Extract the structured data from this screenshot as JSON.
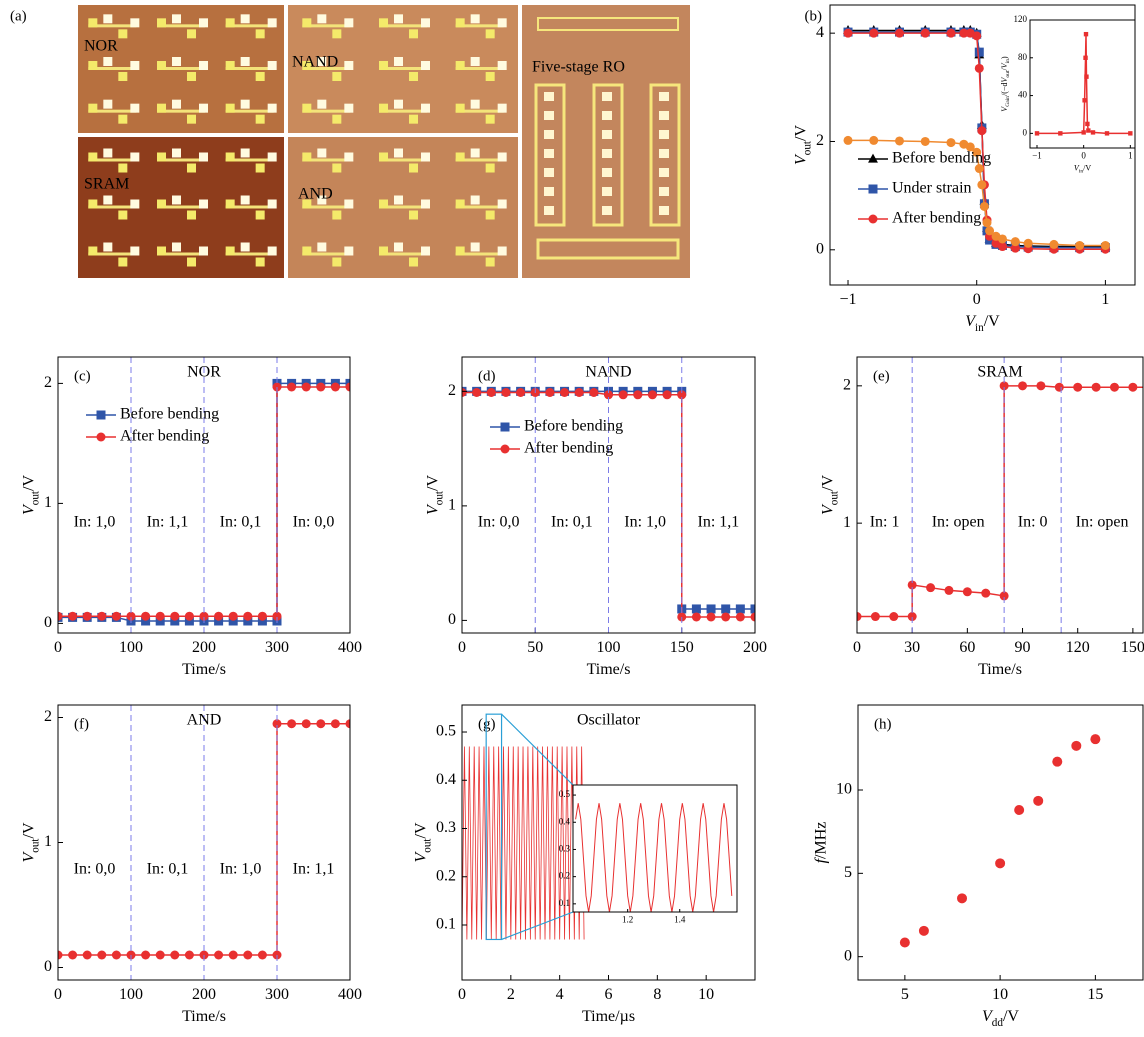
{
  "photo": {
    "label": "(a)",
    "regions": [
      "NOR",
      "NAND",
      "Five-stage RO",
      "SRAM",
      "AND"
    ]
  },
  "chart_data": [
    {
      "type": "line",
      "label": "(b)",
      "xlabel": [
        {
          "t": "V",
          "style": "italic"
        },
        {
          "t": "in",
          "style": "sub"
        },
        {
          "t": "/V"
        }
      ],
      "ylabel": [
        {
          "t": "V",
          "style": "italic"
        },
        {
          "t": "out",
          "style": "sub"
        },
        {
          "t": "/V"
        }
      ],
      "x": [
        -1,
        -0.8,
        -0.6,
        -0.4,
        -0.2,
        -0.1,
        -0.05,
        0,
        0.02,
        0.04,
        0.06,
        0.08,
        0.1,
        0.15,
        0.2,
        0.3,
        0.4,
        0.6,
        0.8,
        1
      ],
      "series": [
        {
          "name": "Before bending",
          "color": "#000000",
          "marker": "triangle",
          "values": [
            4.05,
            4.05,
            4.05,
            4.05,
            4.05,
            4.05,
            4.05,
            4.0,
            3.6,
            2.3,
            0.9,
            0.4,
            0.2,
            0.12,
            0.1,
            0.08,
            0.07,
            0.06,
            0.06,
            0.06
          ]
        },
        {
          "name": "Under strain",
          "color": "#2f55a8",
          "marker": "square",
          "values": [
            4.02,
            4.02,
            4.02,
            4.02,
            4.02,
            4.02,
            4.02,
            3.98,
            3.65,
            2.25,
            0.85,
            0.35,
            0.18,
            0.1,
            0.08,
            0.06,
            0.05,
            0.04,
            0.04,
            0.04
          ]
        },
        {
          "name": "After bending",
          "color": "#e83030",
          "marker": "circle",
          "values": [
            4.0,
            4.0,
            4.0,
            4.0,
            4.0,
            4.0,
            4.0,
            3.95,
            3.35,
            2.2,
            1.2,
            0.55,
            0.25,
            0.12,
            0.06,
            0.03,
            0.02,
            0.01,
            0.01,
            0.01
          ]
        },
        {
          "color": "#f08a30",
          "marker": "circle",
          "values": [
            2.02,
            2.02,
            2.01,
            2.0,
            1.98,
            1.95,
            1.9,
            1.8,
            1.5,
            1.2,
            0.8,
            0.5,
            0.35,
            0.25,
            0.2,
            0.15,
            0.12,
            0.1,
            0.08,
            0.08
          ]
        }
      ],
      "xlim": [
        -1.14,
        1.23
      ],
      "xticks": [
        {
          "value": -1,
          "label": "−1"
        },
        0,
        1
      ],
      "ylim": [
        -0.65,
        4.52
      ],
      "yticks": [
        0,
        2,
        4
      ],
      "legend": "center left",
      "inset": {
        "type": "line",
        "xlabel": [
          {
            "t": "V",
            "style": "italic"
          },
          {
            "t": "in",
            "style": "sub"
          },
          {
            "t": "/V"
          }
        ],
        "ylabel": [
          {
            "t": "V",
            "style": "italic"
          },
          {
            "t": "Gain",
            "style": "sub"
          },
          {
            "t": "/(−d"
          },
          {
            "t": "V",
            "style": "italic"
          },
          {
            "t": "out",
            "style": "sub"
          },
          {
            "t": "/"
          },
          {
            "t": "V",
            "style": "italic"
          },
          {
            "t": "in",
            "style": "sub"
          },
          {
            "t": ")"
          }
        ],
        "x": [
          -1,
          -0.5,
          0,
          0.02,
          0.04,
          0.05,
          0.06,
          0.08,
          0.1,
          0.2,
          0.5,
          1
        ],
        "series": [
          {
            "color": "#e83030",
            "marker": "square",
            "values": [
              0,
              0,
              1,
              35,
              80,
              105,
              60,
              10,
              3,
              1,
              0,
              0
            ]
          }
        ],
        "xlim": [
          -1.15,
          1.1
        ],
        "xticks": [
          {
            "value": -1,
            "label": "−1"
          },
          0,
          1
        ],
        "ylim": [
          -15.5,
          120
        ],
        "yticks": [
          0,
          40,
          80,
          120
        ]
      }
    },
    {
      "type": "line",
      "label": "(c)",
      "title": "NOR",
      "xlabel": [
        {
          "t": "Time/s"
        }
      ],
      "ylabel": [
        {
          "t": "V",
          "style": "italic"
        },
        {
          "t": "out",
          "style": "sub"
        },
        {
          "t": "/V"
        }
      ],
      "x": [
        0,
        20,
        40,
        60,
        80,
        100,
        120,
        140,
        160,
        180,
        200,
        220,
        240,
        260,
        280,
        300,
        300,
        320,
        340,
        360,
        380,
        400
      ],
      "series": [
        {
          "name": "Before bending",
          "color": "#2f55a8",
          "marker": "square",
          "values": [
            0.05,
            0.05,
            0.05,
            0.05,
            0.05,
            0.02,
            0.02,
            0.02,
            0.02,
            0.02,
            0.02,
            0.02,
            0.02,
            0.02,
            0.02,
            0.02,
            2.0,
            2.0,
            2.0,
            2.0,
            2.0,
            2.0
          ]
        },
        {
          "name": "After bending",
          "color": "#e83030",
          "marker": "circle",
          "values": [
            0.06,
            0.06,
            0.06,
            0.06,
            0.06,
            0.06,
            0.06,
            0.06,
            0.06,
            0.06,
            0.06,
            0.06,
            0.06,
            0.06,
            0.06,
            0.06,
            1.97,
            1.97,
            1.97,
            1.97,
            1.97,
            1.97
          ]
        }
      ],
      "vlines": [
        100,
        200,
        300
      ],
      "vline_color": "#7b7be8",
      "annotations": [
        "In: 1,0",
        "In: 1,1",
        "In: 0,1",
        "In: 0,0"
      ],
      "xlim": [
        0,
        400
      ],
      "xticks": [
        0,
        100,
        200,
        300,
        400
      ],
      "ylim": [
        -0.08,
        2.22
      ],
      "yticks": [
        0,
        1,
        2
      ],
      "legend": "upper left"
    },
    {
      "type": "line",
      "label": "(d)",
      "title": "NAND",
      "xlabel": [
        {
          "t": "Time/s"
        }
      ],
      "ylabel": [
        {
          "t": "V",
          "style": "italic"
        },
        {
          "t": "out",
          "style": "sub"
        },
        {
          "t": "/V"
        }
      ],
      "x": [
        0,
        10,
        20,
        30,
        40,
        50,
        60,
        70,
        80,
        90,
        100,
        110,
        120,
        130,
        140,
        150,
        150,
        160,
        170,
        180,
        190,
        200
      ],
      "series": [
        {
          "name": "Before bending",
          "color": "#2f55a8",
          "marker": "square",
          "values": [
            2.0,
            2.0,
            2.0,
            2.0,
            2.0,
            2.0,
            2.0,
            2.0,
            2.0,
            2.0,
            2.0,
            2.0,
            2.0,
            2.0,
            2.0,
            2.0,
            0.1,
            0.1,
            0.1,
            0.1,
            0.1,
            0.1
          ]
        },
        {
          "name": "After bending",
          "color": "#e83030",
          "marker": "circle",
          "values": [
            1.99,
            1.99,
            1.99,
            1.99,
            1.99,
            1.99,
            1.99,
            1.99,
            1.99,
            1.99,
            1.97,
            1.97,
            1.97,
            1.97,
            1.97,
            1.97,
            0.03,
            0.03,
            0.03,
            0.03,
            0.03,
            0.03
          ]
        }
      ],
      "vlines": [
        50,
        100,
        150
      ],
      "vline_color": "#7b7be8",
      "annotations": [
        "In: 0,0",
        "In: 0,1",
        "In: 1,0",
        "In: 1,1"
      ],
      "xlim": [
        0,
        200
      ],
      "xticks": [
        0,
        50,
        100,
        150,
        200
      ],
      "ylim": [
        -0.11,
        2.3
      ],
      "yticks": [
        0,
        1,
        2
      ],
      "legend": "upper left"
    },
    {
      "type": "line",
      "label": "(e)",
      "title": "SRAM",
      "xlabel": [
        {
          "t": "Time/s"
        }
      ],
      "ylabel": [
        {
          "t": "V",
          "style": "italic"
        },
        {
          "t": "out",
          "style": "sub"
        },
        {
          "t": "/V"
        }
      ],
      "x": [
        0,
        10,
        20,
        30,
        30,
        40,
        50,
        60,
        70,
        80,
        80,
        90,
        100,
        110,
        120,
        130,
        140,
        150,
        160
      ],
      "series": [
        {
          "color": "#e83030",
          "marker": "circle",
          "values": [
            0.32,
            0.32,
            0.32,
            0.32,
            0.55,
            0.53,
            0.51,
            0.5,
            0.49,
            0.47,
            2.0,
            2.0,
            2.0,
            1.99,
            1.99,
            1.99,
            1.99,
            1.99,
            1.99
          ]
        }
      ],
      "vlines": [
        30,
        80,
        111
      ],
      "vline_color": "#7b7be8",
      "annotations": [
        "In: 1",
        "In: open",
        "In: 0",
        "In: open"
      ],
      "xlim": [
        0,
        155.5
      ],
      "xticks": [
        0,
        30,
        60,
        90,
        120,
        150
      ],
      "ylim": [
        0.2,
        2.21
      ],
      "yticks": [
        1,
        2
      ]
    },
    {
      "type": "line",
      "label": "(f)",
      "title": "AND",
      "xlabel": [
        {
          "t": "Time/s"
        }
      ],
      "ylabel": [
        {
          "t": "V",
          "style": "italic"
        },
        {
          "t": "out",
          "style": "sub"
        },
        {
          "t": "/V"
        }
      ],
      "x": [
        0,
        20,
        40,
        60,
        80,
        100,
        120,
        140,
        160,
        180,
        200,
        220,
        240,
        260,
        280,
        300,
        300,
        320,
        340,
        360,
        380,
        400
      ],
      "series": [
        {
          "color": "#e83030",
          "marker": "circle",
          "values": [
            0.1,
            0.1,
            0.1,
            0.1,
            0.1,
            0.1,
            0.1,
            0.1,
            0.1,
            0.1,
            0.1,
            0.1,
            0.1,
            0.1,
            0.1,
            0.1,
            1.95,
            1.95,
            1.95,
            1.95,
            1.95,
            1.95
          ]
        }
      ],
      "vlines": [
        100,
        200,
        300
      ],
      "vline_color": "#7b7be8",
      "annotations": [
        "In: 0,0",
        "In: 0,1",
        "In: 1,0",
        "In: 1,1"
      ],
      "xlim": [
        0,
        400
      ],
      "xticks": [
        0,
        100,
        200,
        300,
        400
      ],
      "ylim": [
        -0.1,
        2.1
      ],
      "yticks": [
        0,
        1,
        2
      ]
    },
    {
      "type": "line",
      "label": "(g)",
      "title": "Oscillator",
      "xlabel": [
        {
          "t": "Time/µs"
        }
      ],
      "ylabel": [
        {
          "t": "V",
          "style": "italic"
        },
        {
          "t": "out",
          "style": "sub"
        },
        {
          "t": "/V"
        }
      ],
      "x": [
        0,
        0.1,
        0.2,
        0.3,
        0.4,
        0.5,
        0.6,
        0.7,
        0.8,
        0.9,
        1,
        1.1,
        1.2,
        1.3,
        1.4,
        1.5,
        1.6,
        1.7,
        1.8,
        1.9,
        2,
        2.1,
        2.2,
        2.3,
        2.4,
        2.5,
        2.6,
        2.7,
        2.8,
        2.9,
        3,
        3.1,
        3.2,
        3.3,
        3.4,
        3.5,
        3.6,
        3.7,
        3.8,
        3.9,
        4,
        4.1,
        4.2,
        4.3,
        4.4,
        4.5,
        4.6,
        4.7,
        4.8,
        4.9,
        5
      ],
      "series": [
        {
          "color": "#e83030",
          "values": [
            0.07,
            0.47,
            0.07,
            0.47,
            0.07,
            0.47,
            0.07,
            0.47,
            0.07,
            0.47,
            0.07,
            0.47,
            0.07,
            0.47,
            0.07,
            0.47,
            0.07,
            0.47,
            0.07,
            0.47,
            0.07,
            0.47,
            0.07,
            0.47,
            0.07,
            0.47,
            0.07,
            0.47,
            0.07,
            0.47,
            0.07,
            0.47,
            0.07,
            0.47,
            0.07,
            0.47,
            0.07,
            0.47,
            0.07,
            0.47,
            0.07,
            0.47,
            0.07,
            0.47,
            0.07,
            0.47,
            0.07,
            0.47,
            0.07,
            0.47,
            0.07
          ]
        }
      ],
      "xlim": [
        0,
        12
      ],
      "xticks": [
        0,
        2,
        4,
        6,
        8,
        10
      ],
      "ylim": [
        -0.014,
        0.556
      ],
      "yticks": [
        0.1,
        0.2,
        0.3,
        0.4,
        0.5
      ],
      "zoom_color": "#2a9fd6",
      "inset": {
        "type": "line",
        "x": [
          1,
          1.01,
          1.02,
          1.03,
          1.04,
          1.05,
          1.06,
          1.07,
          1.08,
          1.09,
          1.1,
          1.11,
          1.12,
          1.13,
          1.14,
          1.15,
          1.16,
          1.17,
          1.18,
          1.19,
          1.2,
          1.21,
          1.22,
          1.23,
          1.24,
          1.25,
          1.26,
          1.27,
          1.28,
          1.29,
          1.3,
          1.31,
          1.32,
          1.33,
          1.34,
          1.35,
          1.36,
          1.37,
          1.38,
          1.39,
          1.4,
          1.41,
          1.42,
          1.43,
          1.44,
          1.45,
          1.46,
          1.47,
          1.48,
          1.49,
          1.5,
          1.51,
          1.52,
          1.53,
          1.54,
          1.55,
          1.56,
          1.57,
          1.58,
          1.59,
          1.6
        ],
        "series": [
          {
            "color": "#e83030",
            "values": [
              0.411,
              0.47,
              0.411,
              0.27,
              0.129,
              0.07,
              0.129,
              0.27,
              0.411,
              0.47,
              0.411,
              0.27,
              0.129,
              0.07,
              0.129,
              0.27,
              0.411,
              0.47,
              0.411,
              0.27,
              0.129,
              0.07,
              0.129,
              0.27,
              0.411,
              0.47,
              0.411,
              0.27,
              0.129,
              0.07,
              0.129,
              0.27,
              0.411,
              0.47,
              0.411,
              0.27,
              0.129,
              0.07,
              0.129,
              0.27,
              0.411,
              0.47,
              0.411,
              0.27,
              0.129,
              0.07,
              0.129,
              0.27,
              0.411,
              0.47,
              0.411,
              0.27,
              0.129,
              0.07,
              0.129,
              0.27,
              0.411,
              0.47,
              0.411,
              0.27,
              0.129
            ]
          }
        ],
        "xlim": [
          0.99,
          1.62
        ],
        "xticks": [
          1.2,
          1.4
        ],
        "ylim": [
          0.07,
          0.537
        ],
        "yticks": [
          0.1,
          0.2,
          0.3,
          0.4,
          0.5
        ]
      }
    },
    {
      "type": "scatter",
      "label": "(h)",
      "xlabel": [
        {
          "t": "V",
          "style": "italic"
        },
        {
          "t": "dd",
          "style": "sub"
        },
        {
          "t": "/V"
        }
      ],
      "ylabel": [
        {
          "t": "f",
          "style": "italic"
        },
        {
          "t": "/MHz"
        }
      ],
      "x": [
        5,
        6,
        8,
        10,
        11,
        12,
        13,
        14,
        15
      ],
      "series": [
        {
          "color": "#e83030",
          "marker": "circle",
          "values": [
            0.85,
            1.55,
            3.5,
            5.6,
            8.8,
            9.35,
            11.7,
            12.65,
            13.05
          ]
        }
      ],
      "xlim": [
        2.54,
        17.5
      ],
      "xticks": [
        5,
        10,
        15
      ],
      "ylim": [
        -1.4,
        15.1
      ],
      "yticks": [
        0,
        5,
        10
      ]
    }
  ]
}
